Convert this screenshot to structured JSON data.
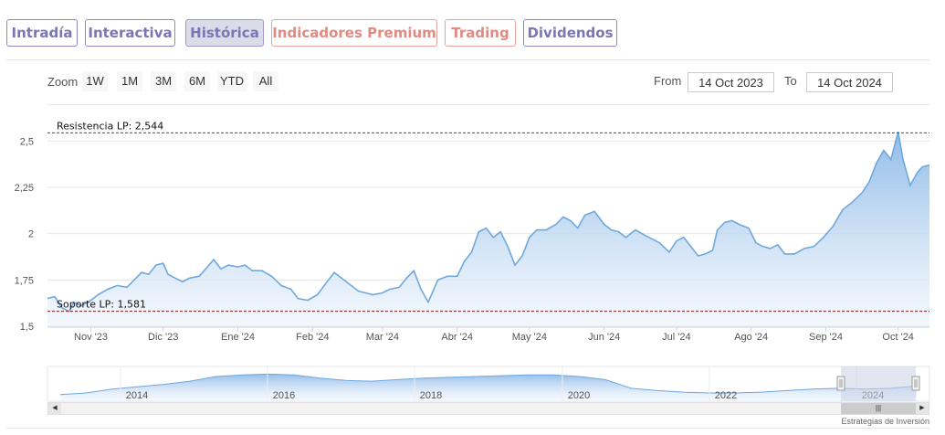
{
  "tabs": [
    {
      "label": "Intradía",
      "tone": "purple"
    },
    {
      "label": "Interactiva",
      "tone": "purple"
    },
    {
      "label": "Histórica",
      "tone": "purple",
      "active": true
    },
    {
      "label": "Indicadores Premium",
      "tone": "salmon"
    },
    {
      "label": "Trading",
      "tone": "salmon"
    },
    {
      "label": "Dividendos",
      "tone": "purple"
    }
  ],
  "zoom": {
    "label": "Zoom",
    "buttons": [
      "1W",
      "1M",
      "3M",
      "6M",
      "YTD",
      "All"
    ]
  },
  "range": {
    "from_label": "From",
    "from_value": "14 Oct 2023",
    "to_label": "To",
    "to_value": "14 Oct 2024"
  },
  "credit": "Estrategias de Inversión",
  "colors": {
    "line": "#6fa8dc",
    "fill_top": "#8ab8e8",
    "fill_bottom": "#ecf3fb",
    "grid": "#e6e6e6",
    "resistance": "#1e6e1e",
    "support": "#8b1a1a",
    "tab_purple": "#7b76b4",
    "tab_salmon": "#e08a82",
    "navigator_mask": "#c8d2e6"
  },
  "chart_data": {
    "type": "area",
    "title": "",
    "xlabel": "",
    "ylabel": "",
    "ylim": [
      1.5,
      2.6
    ],
    "grid": true,
    "yticks": [
      "1,5",
      "1,75",
      "2",
      "2,25",
      "2,5"
    ],
    "ytick_values": [
      1.5,
      1.75,
      2.0,
      2.25,
      2.5
    ],
    "xlim": [
      "2023-10-14",
      "2024-10-14"
    ],
    "month_labels": [
      {
        "date": "2023-11-01",
        "label": "Nov '23"
      },
      {
        "date": "2023-12-01",
        "label": "Dic '23"
      },
      {
        "date": "2024-01-01",
        "label": "Ene '24"
      },
      {
        "date": "2024-02-01",
        "label": "Feb '24"
      },
      {
        "date": "2024-03-01",
        "label": "Mar '24"
      },
      {
        "date": "2024-04-01",
        "label": "Abr '24"
      },
      {
        "date": "2024-05-01",
        "label": "May '24"
      },
      {
        "date": "2024-06-01",
        "label": "Jun '24"
      },
      {
        "date": "2024-07-01",
        "label": "Jul '24"
      },
      {
        "date": "2024-08-01",
        "label": "Ago '24"
      },
      {
        "date": "2024-09-01",
        "label": "Sep '24"
      },
      {
        "date": "2024-10-01",
        "label": "Oct '24"
      }
    ],
    "annotations": [
      {
        "label": "Resistencia LP: 2,544",
        "value": 2.544,
        "kind": "resistance"
      },
      {
        "label": "Soporte LP: 1,581",
        "value": 1.581,
        "kind": "support"
      }
    ],
    "series": [
      {
        "points": [
          [
            "2023-10-14",
            1.65
          ],
          [
            "2023-10-17",
            1.66
          ],
          [
            "2023-10-20",
            1.6
          ],
          [
            "2023-10-23",
            1.58
          ],
          [
            "2023-10-25",
            1.63
          ],
          [
            "2023-10-28",
            1.61
          ],
          [
            "2023-11-01",
            1.64
          ],
          [
            "2023-11-04",
            1.67
          ],
          [
            "2023-11-08",
            1.7
          ],
          [
            "2023-11-12",
            1.72
          ],
          [
            "2023-11-16",
            1.71
          ],
          [
            "2023-11-19",
            1.75
          ],
          [
            "2023-11-22",
            1.79
          ],
          [
            "2023-11-25",
            1.78
          ],
          [
            "2023-11-28",
            1.83
          ],
          [
            "2023-12-01",
            1.84
          ],
          [
            "2023-12-03",
            1.78
          ],
          [
            "2023-12-06",
            1.76
          ],
          [
            "2023-12-09",
            1.74
          ],
          [
            "2023-12-12",
            1.76
          ],
          [
            "2023-12-16",
            1.77
          ],
          [
            "2023-12-20",
            1.83
          ],
          [
            "2023-12-22",
            1.86
          ],
          [
            "2023-12-25",
            1.81
          ],
          [
            "2023-12-28",
            1.83
          ],
          [
            "2024-01-01",
            1.82
          ],
          [
            "2024-01-04",
            1.83
          ],
          [
            "2024-01-07",
            1.8
          ],
          [
            "2024-01-11",
            1.8
          ],
          [
            "2024-01-15",
            1.77
          ],
          [
            "2024-01-19",
            1.72
          ],
          [
            "2024-01-23",
            1.7
          ],
          [
            "2024-01-26",
            1.65
          ],
          [
            "2024-01-30",
            1.64
          ],
          [
            "2024-02-03",
            1.67
          ],
          [
            "2024-02-07",
            1.74
          ],
          [
            "2024-02-10",
            1.79
          ],
          [
            "2024-02-14",
            1.75
          ],
          [
            "2024-02-17",
            1.72
          ],
          [
            "2024-02-20",
            1.69
          ],
          [
            "2024-02-23",
            1.68
          ],
          [
            "2024-02-26",
            1.67
          ],
          [
            "2024-03-01",
            1.68
          ],
          [
            "2024-03-04",
            1.7
          ],
          [
            "2024-03-08",
            1.71
          ],
          [
            "2024-03-11",
            1.76
          ],
          [
            "2024-03-14",
            1.8
          ],
          [
            "2024-03-17",
            1.7
          ],
          [
            "2024-03-20",
            1.63
          ],
          [
            "2024-03-24",
            1.75
          ],
          [
            "2024-03-28",
            1.77
          ],
          [
            "2024-04-01",
            1.77
          ],
          [
            "2024-04-04",
            1.85
          ],
          [
            "2024-04-07",
            1.9
          ],
          [
            "2024-04-10",
            2.01
          ],
          [
            "2024-04-13",
            2.03
          ],
          [
            "2024-04-16",
            1.98
          ],
          [
            "2024-04-19",
            2.01
          ],
          [
            "2024-04-22",
            1.93
          ],
          [
            "2024-04-25",
            1.83
          ],
          [
            "2024-04-28",
            1.88
          ],
          [
            "2024-05-01",
            1.98
          ],
          [
            "2024-05-04",
            2.02
          ],
          [
            "2024-05-08",
            2.02
          ],
          [
            "2024-05-12",
            2.05
          ],
          [
            "2024-05-15",
            2.09
          ],
          [
            "2024-05-18",
            2.07
          ],
          [
            "2024-05-21",
            2.03
          ],
          [
            "2024-05-24",
            2.1
          ],
          [
            "2024-05-28",
            2.12
          ],
          [
            "2024-06-01",
            2.05
          ],
          [
            "2024-06-04",
            2.02
          ],
          [
            "2024-06-07",
            2.01
          ],
          [
            "2024-06-10",
            1.98
          ],
          [
            "2024-06-14",
            2.02
          ],
          [
            "2024-06-18",
            1.99
          ],
          [
            "2024-06-21",
            1.97
          ],
          [
            "2024-06-24",
            1.95
          ],
          [
            "2024-06-28",
            1.9
          ],
          [
            "2024-07-01",
            1.96
          ],
          [
            "2024-07-04",
            1.98
          ],
          [
            "2024-07-07",
            1.93
          ],
          [
            "2024-07-10",
            1.88
          ],
          [
            "2024-07-13",
            1.89
          ],
          [
            "2024-07-16",
            1.91
          ],
          [
            "2024-07-18",
            2.02
          ],
          [
            "2024-07-21",
            2.06
          ],
          [
            "2024-07-24",
            2.07
          ],
          [
            "2024-07-27",
            2.05
          ],
          [
            "2024-07-31",
            2.03
          ],
          [
            "2024-08-03",
            1.95
          ],
          [
            "2024-08-06",
            1.93
          ],
          [
            "2024-08-09",
            1.92
          ],
          [
            "2024-08-12",
            1.94
          ],
          [
            "2024-08-15",
            1.89
          ],
          [
            "2024-08-19",
            1.89
          ],
          [
            "2024-08-23",
            1.92
          ],
          [
            "2024-08-27",
            1.93
          ],
          [
            "2024-08-31",
            1.98
          ],
          [
            "2024-09-04",
            2.04
          ],
          [
            "2024-09-08",
            2.13
          ],
          [
            "2024-09-12",
            2.17
          ],
          [
            "2024-09-16",
            2.22
          ],
          [
            "2024-09-19",
            2.28
          ],
          [
            "2024-09-22",
            2.38
          ],
          [
            "2024-09-25",
            2.45
          ],
          [
            "2024-09-28",
            2.4
          ],
          [
            "2024-10-01",
            2.55
          ],
          [
            "2024-10-03",
            2.4
          ],
          [
            "2024-10-06",
            2.26
          ],
          [
            "2024-10-09",
            2.33
          ],
          [
            "2024-10-11",
            2.36
          ],
          [
            "2024-10-14",
            2.37
          ]
        ]
      }
    ]
  },
  "navigator": {
    "year_labels": [
      "2014",
      "2016",
      "2018",
      "2020",
      "2022",
      "2024"
    ],
    "series": [
      1.55,
      1.57,
      1.62,
      1.65,
      1.68,
      1.72,
      1.78,
      1.8,
      1.81,
      1.8,
      1.76,
      1.73,
      1.72,
      1.74,
      1.76,
      1.77,
      1.78,
      1.79,
      1.8,
      1.8,
      1.78,
      1.74,
      1.63,
      1.6,
      1.58,
      1.57,
      1.57,
      1.58,
      1.6,
      1.62,
      1.63,
      1.62,
      1.63,
      1.66
    ]
  }
}
